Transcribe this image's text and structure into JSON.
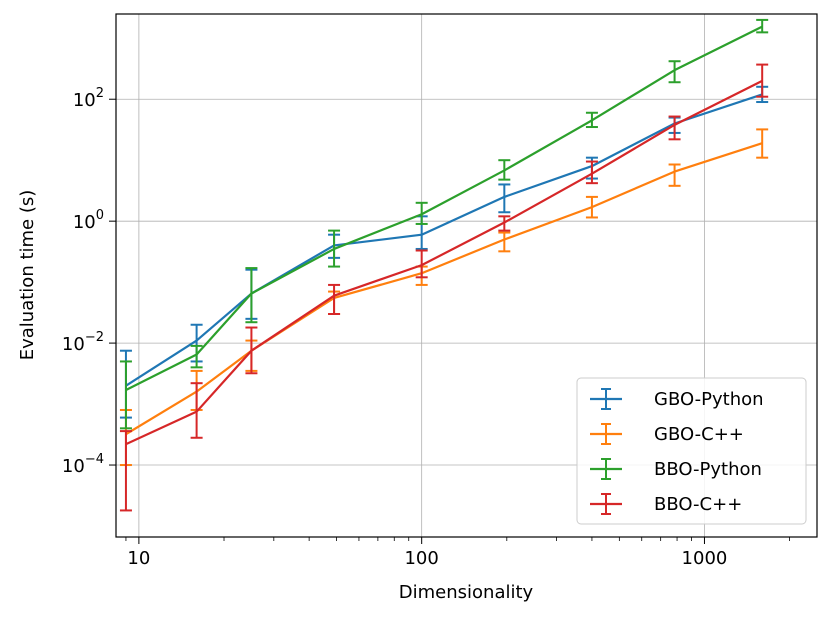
{
  "chart_data": {
    "type": "line",
    "xscale": "log",
    "yscale": "log",
    "xlabel": "Dimensionality",
    "ylabel": "Evaluation time (s)",
    "xlim": [
      8.3,
      2500
    ],
    "ylim": [
      6.6e-06,
      2500
    ],
    "xticks": [
      {
        "value": 10,
        "label": "10"
      },
      {
        "value": 100,
        "label": "100"
      },
      {
        "value": 1000,
        "label": "1000"
      }
    ],
    "yticks": [
      {
        "value": 0.0001,
        "base": "10",
        "exp": "−4"
      },
      {
        "value": 0.01,
        "base": "10",
        "exp": "−2"
      },
      {
        "value": 1,
        "base": "10",
        "exp": "0"
      },
      {
        "value": 100,
        "base": "10",
        "exp": "2"
      }
    ],
    "grid": true,
    "legend_position": "lower-right",
    "x": [
      9,
      16,
      25,
      49,
      100,
      196,
      400,
      784,
      1600
    ],
    "series": [
      {
        "name": "GBO-Python",
        "color": "#1f77b4",
        "values": [
          0.002,
          0.011,
          0.065,
          0.4,
          0.6,
          2.5,
          8.0,
          40,
          120
        ],
        "lower": [
          0.0006,
          0.005,
          0.025,
          0.25,
          0.35,
          1.4,
          5.0,
          28,
          90
        ],
        "upper": [
          0.0075,
          0.02,
          0.16,
          0.6,
          1.2,
          4.0,
          11,
          50,
          160
        ]
      },
      {
        "name": "GBO-C++",
        "color": "#ff7f0e",
        "values": [
          0.00032,
          0.0016,
          0.0075,
          0.055,
          0.14,
          0.5,
          1.7,
          6.5,
          19
        ],
        "lower": [
          0.0001,
          0.0008,
          0.0035,
          0.03,
          0.09,
          0.32,
          1.15,
          3.8,
          11
        ],
        "upper": [
          0.0008,
          0.0035,
          0.011,
          0.07,
          0.18,
          0.65,
          2.5,
          8.5,
          32
        ]
      },
      {
        "name": "BBO-Python",
        "color": "#2ca02c",
        "values": [
          0.0017,
          0.0065,
          0.065,
          0.35,
          1.3,
          6.8,
          45,
          300,
          1550
        ],
        "lower": [
          0.0004,
          0.004,
          0.022,
          0.18,
          0.9,
          4.8,
          35,
          190,
          1250
        ],
        "upper": [
          0.005,
          0.009,
          0.17,
          0.7,
          2.0,
          10,
          60,
          420,
          2000
        ]
      },
      {
        "name": "BBO-C++",
        "color": "#d62728",
        "values": [
          0.00022,
          0.00075,
          0.0075,
          0.06,
          0.19,
          0.95,
          6.0,
          38,
          200
        ],
        "lower": [
          1.8e-05,
          0.00028,
          0.0032,
          0.03,
          0.12,
          0.7,
          4.2,
          22,
          110
        ],
        "upper": [
          0.00036,
          0.0022,
          0.018,
          0.09,
          0.33,
          1.2,
          9.5,
          52,
          370
        ]
      }
    ]
  }
}
